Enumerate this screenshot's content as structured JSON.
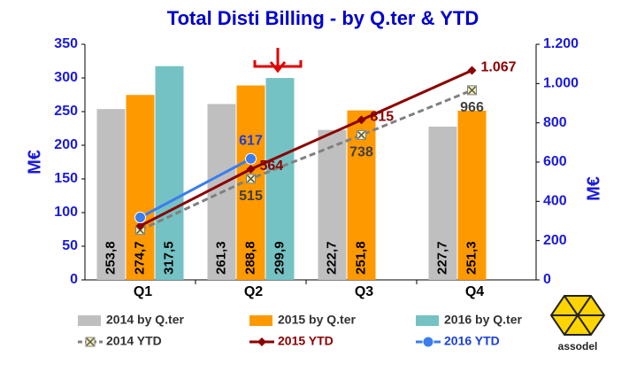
{
  "chart_data": {
    "type": "bar-line",
    "title": "Total Disti Billing - by Q.ter & YTD",
    "ylabel": "M€",
    "y2label": "M€",
    "categories": [
      "Q1",
      "Q2",
      "Q3",
      "Q4"
    ],
    "ylim": [
      0,
      350
    ],
    "yticks": [
      0,
      50,
      100,
      150,
      200,
      250,
      300,
      350
    ],
    "y2lim": [
      0,
      1200
    ],
    "y2ticks": [
      0,
      200,
      400,
      600,
      800,
      {
        "value": 1000,
        "label": "1.000"
      },
      {
        "value": 1200,
        "label": "1.200"
      }
    ],
    "series": [
      {
        "name": "2014 by Q.ter",
        "kind": "bar",
        "color": "#bfbfbf",
        "values": [
          253.8,
          261.3,
          222.7,
          227.7
        ],
        "value_labels": [
          "253,8",
          "261,3",
          "222,7",
          "227,7"
        ]
      },
      {
        "name": "2015 by Q.ter",
        "kind": "bar",
        "color": "#ff9900",
        "values": [
          274.7,
          288.8,
          251.8,
          251.3
        ],
        "value_labels": [
          "274,7",
          "288,8",
          "251,8",
          "251,3"
        ]
      },
      {
        "name": "2016 by Q.ter",
        "kind": "bar",
        "color": "#74c2c4",
        "values": [
          317.5,
          299.9,
          null,
          null
        ],
        "value_labels": [
          "317,5",
          "299,9",
          null,
          null
        ]
      },
      {
        "name": "2014 YTD",
        "kind": "line",
        "axis": "y2",
        "color": "#808080",
        "dashed": true,
        "marker": "x-square",
        "label_color": "#404040",
        "label_side": "below",
        "values": [
          254,
          515,
          738,
          966
        ],
        "value_labels": [
          null,
          "515",
          "738",
          "966"
        ]
      },
      {
        "name": "2015 YTD",
        "kind": "line",
        "axis": "y2",
        "color": "#8b0000",
        "dashed": false,
        "marker": "diamond",
        "label_color": "#8b0000",
        "label_side": "right",
        "values": [
          275,
          564,
          815,
          1067
        ],
        "value_labels": [
          null,
          "564",
          "815",
          "1.067"
        ]
      },
      {
        "name": "2016 YTD",
        "kind": "line",
        "axis": "y2",
        "color": "#3a7df0",
        "dashed": false,
        "marker": "circle",
        "label_color": "#1a3fd8",
        "label_side": "above",
        "values": [
          318,
          617,
          null,
          null
        ],
        "value_labels": [
          null,
          "617",
          null,
          null
        ]
      }
    ],
    "logo": "assodel"
  }
}
